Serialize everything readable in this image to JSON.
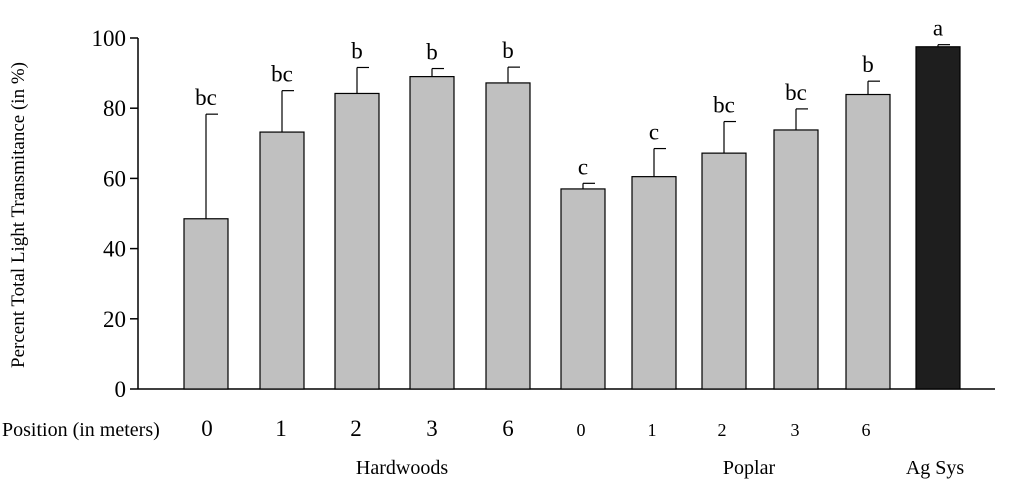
{
  "chart_data": {
    "type": "bar",
    "ylabel": "Percent Total Light Transmitance (in %)",
    "xlabel_prefix": "Position (in meters)",
    "ylim": [
      0,
      100
    ],
    "yticks": [
      0,
      20,
      40,
      60,
      80,
      100
    ],
    "grid": false,
    "legend": "none",
    "groups": [
      {
        "name": "Hardwoods",
        "positions": [
          "0",
          "1",
          "2",
          "3",
          "6"
        ]
      },
      {
        "name": "Poplar",
        "positions": [
          "0",
          "1",
          "2",
          "3",
          "6"
        ]
      },
      {
        "name": "Ag Sys",
        "positions": [
          ""
        ]
      }
    ],
    "categories": [
      "0",
      "1",
      "2",
      "3",
      "6",
      "0",
      "1",
      "2",
      "3",
      "6",
      ""
    ],
    "values": [
      48.5,
      73.2,
      84.2,
      89.0,
      87.2,
      57.0,
      60.5,
      67.2,
      73.8,
      83.9,
      97.5
    ],
    "errors": [
      29.8,
      11.8,
      7.4,
      2.3,
      4.5,
      1.6,
      8.0,
      9.0,
      6.0,
      3.8,
      0.6
    ],
    "significance": [
      "bc",
      "bc",
      "b",
      "b",
      "b",
      "c",
      "c",
      "bc",
      "bc",
      "b",
      "a"
    ],
    "bar_colors": [
      "#c0c0c0",
      "#c0c0c0",
      "#c0c0c0",
      "#c0c0c0",
      "#c0c0c0",
      "#c0c0c0",
      "#c0c0c0",
      "#c0c0c0",
      "#c0c0c0",
      "#c0c0c0",
      "#1e1e1e"
    ]
  }
}
